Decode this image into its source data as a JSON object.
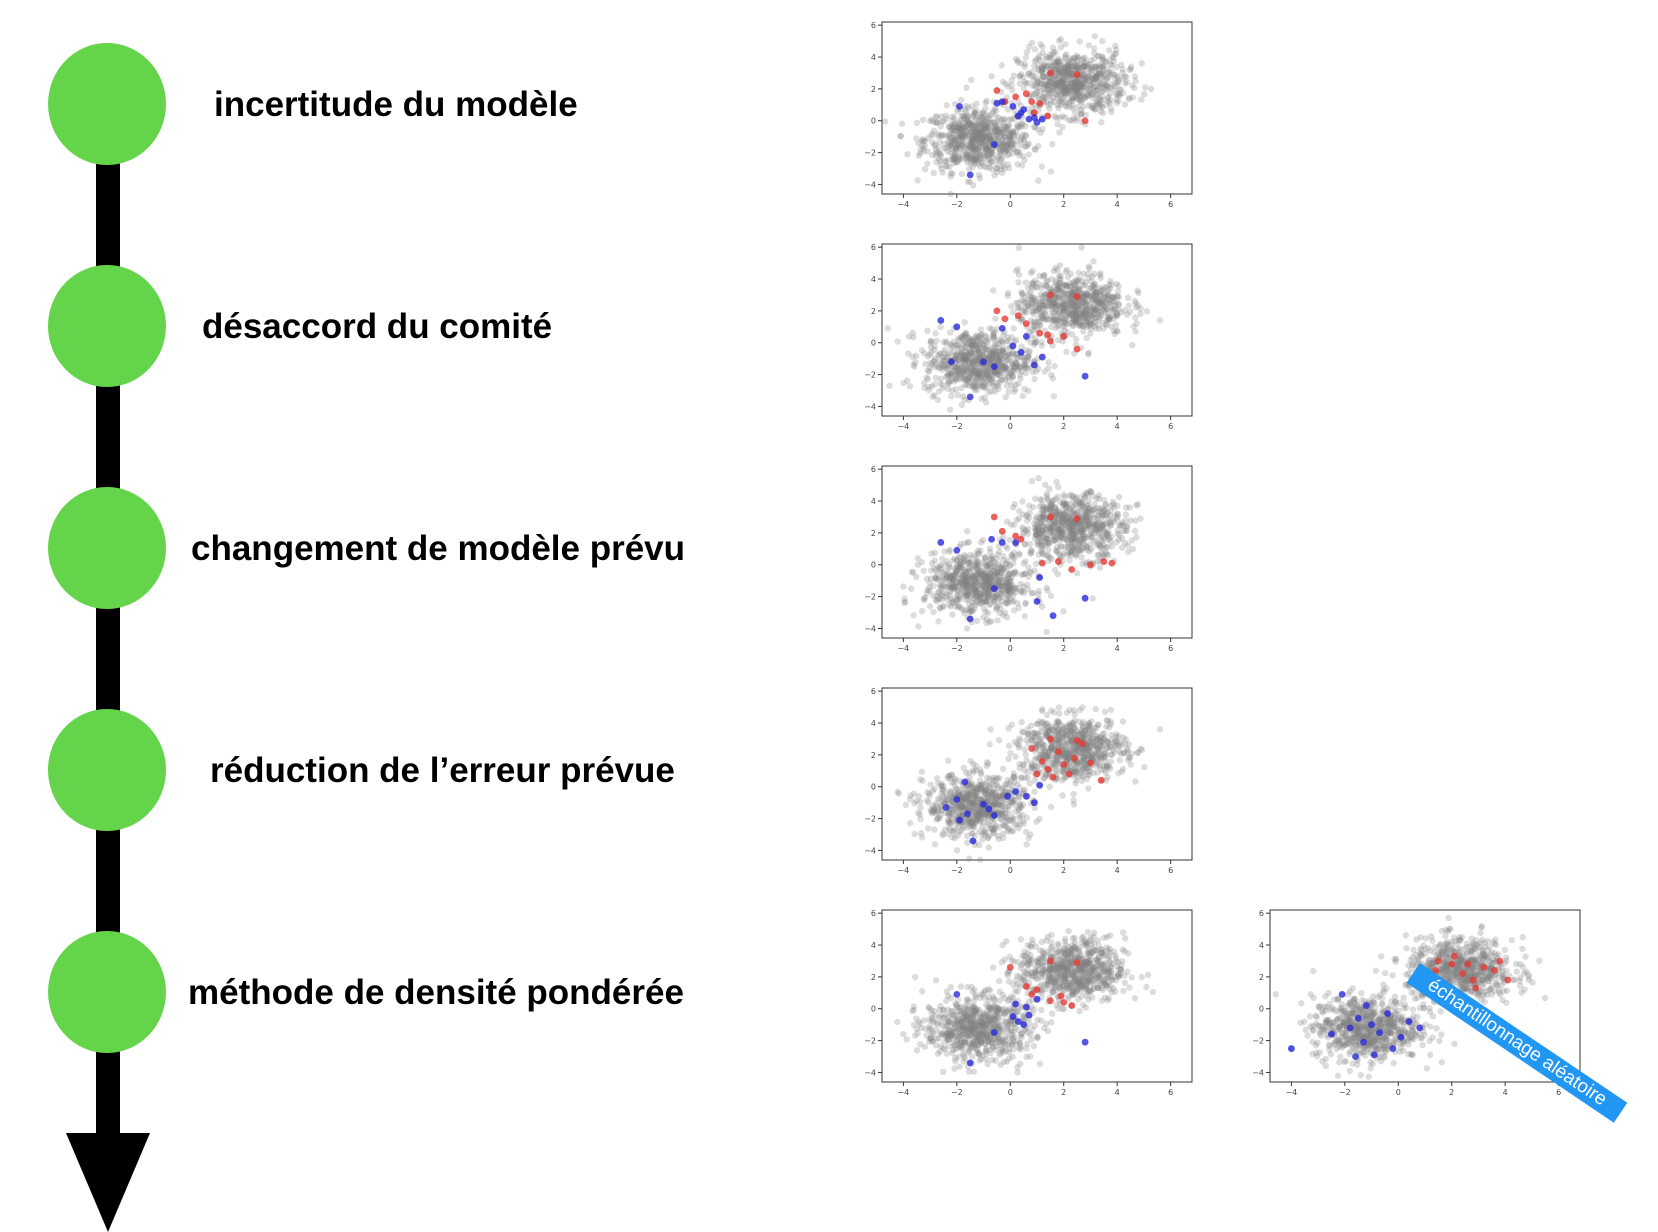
{
  "steps": [
    {
      "label": "incertitude du modèle"
    },
    {
      "label": "désaccord du comité"
    },
    {
      "label": "changement de modèle prévu"
    },
    {
      "label": "réduction de l’erreur prévue"
    },
    {
      "label": "méthode de densité pondérée"
    }
  ],
  "random_sampling_label": "échantillonnage aléatoire",
  "colors": {
    "node": "#64d54a",
    "timeline": "#000000",
    "background_points": "#808080",
    "class_a": "#e53935",
    "class_b": "#2b2bd9",
    "banner": "#2196f3"
  },
  "chart_data": [
    {
      "type": "scatter",
      "xticks": [
        -4,
        -2,
        0,
        2,
        4,
        6
      ],
      "yticks": [
        -4,
        -2,
        0,
        2,
        4,
        6
      ],
      "xlim": [
        -4.8,
        6.8
      ],
      "ylim": [
        -4.6,
        6.2
      ],
      "background_clusters": [
        {
          "center": [
            -1.2,
            -1.2
          ],
          "count": 700,
          "color": "#808080"
        },
        {
          "center": [
            2.3,
            2.4
          ],
          "count": 700,
          "color": "#808080"
        }
      ],
      "series": [
        {
          "color": "#e53935",
          "points": [
            [
              1.5,
              3.0
            ],
            [
              2.5,
              2.9
            ],
            [
              -0.5,
              1.9
            ],
            [
              0.2,
              1.5
            ],
            [
              0.8,
              1.2
            ],
            [
              1.1,
              1.1
            ],
            [
              0.6,
              1.7
            ],
            [
              -0.2,
              1.2
            ],
            [
              1.4,
              0.3
            ],
            [
              2.8,
              0.0
            ],
            [
              0.9,
              0.5
            ]
          ]
        },
        {
          "color": "#2b2bd9",
          "points": [
            [
              -1.9,
              0.9
            ],
            [
              -1.5,
              -3.4
            ],
            [
              -0.6,
              -1.5
            ],
            [
              -0.3,
              1.2
            ],
            [
              0.1,
              0.9
            ],
            [
              0.4,
              0.5
            ],
            [
              0.7,
              0.1
            ],
            [
              1.0,
              -0.1
            ],
            [
              0.9,
              0.2
            ],
            [
              1.2,
              0.1
            ],
            [
              0.5,
              0.7
            ],
            [
              -0.5,
              1.1
            ],
            [
              0.3,
              0.3
            ]
          ]
        }
      ]
    },
    {
      "type": "scatter",
      "xticks": [
        -4,
        -2,
        0,
        2,
        4,
        6
      ],
      "yticks": [
        -4,
        -2,
        0,
        2,
        4,
        6
      ],
      "xlim": [
        -4.8,
        6.8
      ],
      "ylim": [
        -4.6,
        6.2
      ],
      "background_clusters": [
        {
          "center": [
            -1.2,
            -1.2
          ],
          "count": 700,
          "color": "#808080"
        },
        {
          "center": [
            2.3,
            2.4
          ],
          "count": 700,
          "color": "#808080"
        }
      ],
      "series": [
        {
          "color": "#e53935",
          "points": [
            [
              1.5,
              3.0
            ],
            [
              2.5,
              2.9
            ],
            [
              -0.5,
              2.0
            ],
            [
              -0.2,
              1.5
            ],
            [
              0.6,
              1.2
            ],
            [
              1.1,
              0.6
            ],
            [
              1.4,
              0.5
            ],
            [
              2.0,
              0.4
            ],
            [
              2.5,
              -0.4
            ],
            [
              1.5,
              0.1
            ],
            [
              0.3,
              1.7
            ]
          ]
        },
        {
          "color": "#2b2bd9",
          "points": [
            [
              -2.6,
              1.4
            ],
            [
              -2.0,
              1.0
            ],
            [
              -1.5,
              -3.4
            ],
            [
              -1.0,
              -1.2
            ],
            [
              -0.6,
              -1.5
            ],
            [
              0.1,
              -0.2
            ],
            [
              0.4,
              -0.6
            ],
            [
              0.9,
              -1.4
            ],
            [
              1.2,
              -0.9
            ],
            [
              2.8,
              -2.1
            ],
            [
              -0.3,
              0.9
            ],
            [
              0.6,
              0.4
            ],
            [
              -2.2,
              -1.2
            ]
          ]
        }
      ]
    },
    {
      "type": "scatter",
      "xticks": [
        -4,
        -2,
        0,
        2,
        4,
        6
      ],
      "yticks": [
        -4,
        -2,
        0,
        2,
        4,
        6
      ],
      "xlim": [
        -4.8,
        6.8
      ],
      "ylim": [
        -4.6,
        6.2
      ],
      "background_clusters": [
        {
          "center": [
            -1.2,
            -1.2
          ],
          "count": 700,
          "color": "#808080"
        },
        {
          "center": [
            2.3,
            2.4
          ],
          "count": 700,
          "color": "#808080"
        }
      ],
      "series": [
        {
          "color": "#e53935",
          "points": [
            [
              1.5,
              3.0
            ],
            [
              2.5,
              2.9
            ],
            [
              -0.6,
              3.0
            ],
            [
              -0.3,
              2.1
            ],
            [
              0.2,
              1.8
            ],
            [
              0.4,
              1.6
            ],
            [
              1.2,
              0.1
            ],
            [
              1.8,
              0.2
            ],
            [
              2.3,
              -0.3
            ],
            [
              3.0,
              0.0
            ],
            [
              3.5,
              0.2
            ],
            [
              3.8,
              0.1
            ]
          ]
        },
        {
          "color": "#2b2bd9",
          "points": [
            [
              -2.6,
              1.4
            ],
            [
              -2.0,
              0.9
            ],
            [
              -1.5,
              -3.4
            ],
            [
              -0.6,
              -1.5
            ],
            [
              -0.7,
              1.6
            ],
            [
              -0.3,
              1.4
            ],
            [
              0.2,
              1.4
            ],
            [
              1.1,
              -0.8
            ],
            [
              1.6,
              -3.2
            ],
            [
              2.8,
              -2.1
            ],
            [
              1.0,
              -2.3
            ]
          ]
        }
      ]
    },
    {
      "type": "scatter",
      "xticks": [
        -4,
        -2,
        0,
        2,
        4,
        6
      ],
      "yticks": [
        -4,
        -2,
        0,
        2,
        4,
        6
      ],
      "xlim": [
        -4.8,
        6.8
      ],
      "ylim": [
        -4.6,
        6.2
      ],
      "background_clusters": [
        {
          "center": [
            -1.2,
            -1.2
          ],
          "count": 700,
          "color": "#808080"
        },
        {
          "center": [
            2.3,
            2.4
          ],
          "count": 700,
          "color": "#808080"
        }
      ],
      "series": [
        {
          "color": "#e53935",
          "points": [
            [
              1.5,
              3.0
            ],
            [
              2.5,
              2.9
            ],
            [
              0.8,
              2.4
            ],
            [
              1.2,
              1.6
            ],
            [
              1.8,
              2.2
            ],
            [
              2.0,
              1.4
            ],
            [
              2.4,
              1.8
            ],
            [
              3.0,
              1.5
            ],
            [
              1.0,
              0.8
            ],
            [
              1.6,
              0.6
            ],
            [
              2.2,
              0.8
            ],
            [
              3.4,
              0.4
            ],
            [
              2.7,
              2.7
            ],
            [
              1.4,
              1.1
            ]
          ]
        },
        {
          "color": "#2b2bd9",
          "points": [
            [
              -2.4,
              -1.3
            ],
            [
              -2.0,
              -0.8
            ],
            [
              -1.6,
              -1.7
            ],
            [
              -1.4,
              -3.4
            ],
            [
              -1.0,
              -1.1
            ],
            [
              -0.6,
              -1.8
            ],
            [
              -0.1,
              -0.6
            ],
            [
              0.6,
              -0.6
            ],
            [
              0.9,
              -1.0
            ],
            [
              1.1,
              0.1
            ],
            [
              -1.7,
              0.3
            ],
            [
              -0.8,
              -1.4
            ],
            [
              0.2,
              -0.3
            ],
            [
              -1.9,
              -2.1
            ]
          ]
        }
      ]
    },
    {
      "type": "scatter",
      "xticks": [
        -4,
        -2,
        0,
        2,
        4,
        6
      ],
      "yticks": [
        -4,
        -2,
        0,
        2,
        4,
        6
      ],
      "xlim": [
        -4.8,
        6.8
      ],
      "ylim": [
        -4.6,
        6.2
      ],
      "background_clusters": [
        {
          "center": [
            -1.2,
            -1.2
          ],
          "count": 700,
          "color": "#808080"
        },
        {
          "center": [
            2.3,
            2.4
          ],
          "count": 700,
          "color": "#808080"
        }
      ],
      "series": [
        {
          "color": "#e53935",
          "points": [
            [
              1.5,
              3.0
            ],
            [
              2.5,
              2.9
            ],
            [
              0.0,
              2.6
            ],
            [
              0.6,
              1.4
            ],
            [
              1.0,
              1.2
            ],
            [
              1.5,
              0.5
            ],
            [
              2.0,
              0.4
            ],
            [
              2.3,
              0.2
            ],
            [
              1.9,
              0.8
            ],
            [
              0.8,
              0.9
            ]
          ]
        },
        {
          "color": "#2b2bd9",
          "points": [
            [
              -2.0,
              0.9
            ],
            [
              -1.5,
              -3.4
            ],
            [
              -0.6,
              -1.5
            ],
            [
              0.1,
              -0.5
            ],
            [
              0.3,
              -0.8
            ],
            [
              0.5,
              -1.0
            ],
            [
              0.7,
              -0.4
            ],
            [
              1.0,
              0.6
            ],
            [
              2.8,
              -2.1
            ],
            [
              0.2,
              0.3
            ],
            [
              0.6,
              0.1
            ]
          ]
        }
      ]
    },
    {
      "type": "scatter",
      "xticks": [
        -4,
        -2,
        0,
        2,
        4,
        6
      ],
      "yticks": [
        -4,
        -2,
        0,
        2,
        4,
        6
      ],
      "xlim": [
        -4.8,
        6.8
      ],
      "ylim": [
        -4.6,
        6.2
      ],
      "background_clusters": [
        {
          "center": [
            -1.2,
            -1.2
          ],
          "count": 700,
          "color": "#808080"
        },
        {
          "center": [
            2.3,
            2.4
          ],
          "count": 700,
          "color": "#808080"
        }
      ],
      "series": [
        {
          "color": "#e53935",
          "points": [
            [
              1.5,
              3.0
            ],
            [
              2.0,
              2.8
            ],
            [
              2.6,
              2.8
            ],
            [
              3.2,
              2.6
            ],
            [
              3.8,
              3.0
            ],
            [
              2.4,
              2.2
            ],
            [
              2.8,
              1.8
            ],
            [
              3.6,
              2.4
            ],
            [
              2.1,
              3.3
            ],
            [
              1.4,
              2.4
            ],
            [
              2.9,
              1.3
            ],
            [
              4.1,
              1.8
            ]
          ]
        },
        {
          "color": "#2b2bd9",
          "points": [
            [
              -4.0,
              -2.5
            ],
            [
              -2.1,
              0.9
            ],
            [
              -1.8,
              -1.2
            ],
            [
              -1.5,
              -0.6
            ],
            [
              -1.3,
              -2.1
            ],
            [
              -1.0,
              -1.0
            ],
            [
              -0.7,
              -1.5
            ],
            [
              -0.4,
              -0.3
            ],
            [
              -0.2,
              -2.5
            ],
            [
              0.4,
              -0.8
            ],
            [
              0.8,
              -1.2
            ],
            [
              -1.6,
              -3.0
            ],
            [
              -2.5,
              -1.6
            ],
            [
              -0.9,
              -2.9
            ],
            [
              0.1,
              -1.8
            ],
            [
              -1.2,
              0.2
            ]
          ]
        }
      ]
    }
  ]
}
